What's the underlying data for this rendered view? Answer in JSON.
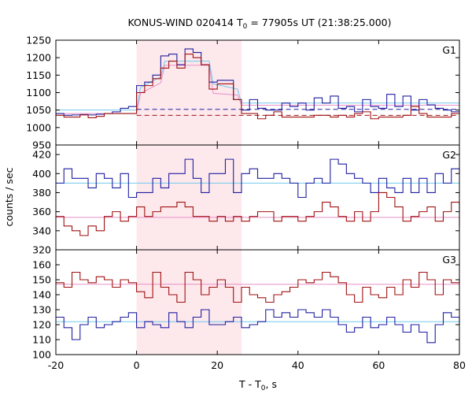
{
  "chart_data": {
    "type": "line",
    "title": "KONUS-WIND 020414 T",
    "title_sub": "0",
    "title_rest": " = 77905s UT (21:38:25.000)",
    "xlabel": "T - T",
    "xlabel_sub": "0",
    "xlabel_rest": ", s",
    "ylabel": "counts / sec",
    "xlim": [
      -20,
      80
    ],
    "xticks": [
      "-20",
      "0",
      "20",
      "40",
      "60",
      "80"
    ],
    "shaded_interval": [
      0,
      26
    ],
    "colors": {
      "blue": "#1f1fa0",
      "red": "#a01010",
      "lightblue": "#70c8ee",
      "pink": "#e890c8",
      "shade": "#fde8ec"
    },
    "panels": [
      {
        "label": "G1",
        "ylim": [
          950,
          1250
        ],
        "yticks": [
          "950",
          "1000",
          "1050",
          "1100",
          "1150",
          "1200",
          "1250"
        ],
        "fits": [
          {
            "color": "lightblue",
            "dash": false,
            "points": [
              [
                -20,
                1050
              ],
              [
                0,
                1050
              ],
              [
                1,
                1115
              ],
              [
                6,
                1145
              ],
              [
                7,
                1190
              ],
              [
                18,
                1190
              ],
              [
                19,
                1125
              ],
              [
                25,
                1110
              ],
              [
                26,
                1070
              ],
              [
                80,
                1070
              ]
            ]
          },
          {
            "color": "pink",
            "dash": false,
            "points": [
              [
                -20,
                1040
              ],
              [
                0,
                1040
              ],
              [
                1,
                1098
              ],
              [
                6,
                1128
              ],
              [
                7,
                1178
              ],
              [
                18,
                1178
              ],
              [
                19,
                1098
              ],
              [
                25,
                1093
              ],
              [
                26,
                1064
              ],
              [
                80,
                1064
              ]
            ]
          },
          {
            "color": "blue",
            "dash": true,
            "points": [
              [
                0,
                1052
              ],
              [
                80,
                1052
              ]
            ]
          },
          {
            "color": "red",
            "dash": true,
            "points": [
              [
                0,
                1035
              ],
              [
                80,
                1035
              ]
            ]
          }
        ],
        "series": [
          {
            "color": "blue",
            "edges": [
              -20,
              -18,
              -16,
              -14,
              -12,
              -10,
              -8,
              -6,
              -4,
              -2,
              0,
              2,
              4,
              6,
              8,
              10,
              12,
              14,
              16,
              18,
              20,
              22,
              24,
              26,
              28,
              30,
              32,
              34,
              36,
              38,
              40,
              42,
              44,
              46,
              48,
              50,
              52,
              54,
              56,
              58,
              60,
              62,
              64,
              66,
              68,
              70,
              72,
              74,
              76,
              78,
              80
            ],
            "values": [
              1040,
              1035,
              1036,
              1037,
              1036,
              1038,
              1040,
              1045,
              1055,
              1060,
              1120,
              1130,
              1150,
              1205,
              1210,
              1180,
              1225,
              1215,
              1180,
              1130,
              1135,
              1135,
              1080,
              1050,
              1080,
              1055,
              1050,
              1050,
              1070,
              1060,
              1070,
              1050,
              1085,
              1070,
              1090,
              1055,
              1060,
              1045,
              1080,
              1060,
              1055,
              1095,
              1060,
              1090,
              1050,
              1080,
              1065,
              1055,
              1050,
              1045
            ]
          },
          {
            "color": "red",
            "edges": [
              -20,
              -18,
              -16,
              -14,
              -12,
              -10,
              -8,
              -6,
              -4,
              -2,
              0,
              2,
              4,
              6,
              8,
              10,
              12,
              14,
              16,
              18,
              20,
              22,
              24,
              26,
              28,
              30,
              32,
              34,
              36,
              38,
              40,
              42,
              44,
              46,
              48,
              50,
              52,
              54,
              56,
              58,
              60,
              62,
              64,
              66,
              68,
              70,
              72,
              74,
              76,
              78,
              80
            ],
            "values": [
              1035,
              1030,
              1030,
              1036,
              1028,
              1032,
              1040,
              1040,
              1040,
              1040,
              1100,
              1120,
              1140,
              1170,
              1190,
              1170,
              1210,
              1200,
              1180,
              1110,
              1125,
              1125,
              1080,
              1040,
              1040,
              1025,
              1035,
              1045,
              1030,
              1030,
              1030,
              1030,
              1035,
              1035,
              1030,
              1035,
              1030,
              1040,
              1045,
              1025,
              1030,
              1030,
              1030,
              1035,
              1060,
              1040,
              1030,
              1030,
              1030,
              1040
            ]
          }
        ]
      },
      {
        "label": "G2",
        "ylim": [
          320,
          430
        ],
        "yticks": [
          "320",
          "340",
          "360",
          "380",
          "400",
          "420"
        ],
        "fits": [
          {
            "color": "lightblue",
            "dash": false,
            "points": [
              [
                -20,
                390
              ],
              [
                80,
                390
              ]
            ]
          },
          {
            "color": "pink",
            "dash": false,
            "points": [
              [
                -20,
                354
              ],
              [
                80,
                354
              ]
            ]
          }
        ],
        "series": [
          {
            "color": "blue",
            "edges": [
              -20,
              -18,
              -16,
              -14,
              -12,
              -10,
              -8,
              -6,
              -4,
              -2,
              0,
              2,
              4,
              6,
              8,
              10,
              12,
              14,
              16,
              18,
              20,
              22,
              24,
              26,
              28,
              30,
              32,
              34,
              36,
              38,
              40,
              42,
              44,
              46,
              48,
              50,
              52,
              54,
              56,
              58,
              60,
              62,
              64,
              66,
              68,
              70,
              72,
              74,
              76,
              78,
              80
            ],
            "values": [
              390,
              405,
              395,
              395,
              385,
              400,
              395,
              385,
              400,
              375,
              380,
              380,
              395,
              385,
              400,
              400,
              415,
              395,
              380,
              400,
              400,
              415,
              380,
              400,
              405,
              395,
              395,
              400,
              395,
              390,
              375,
              390,
              395,
              390,
              415,
              410,
              400,
              395,
              390,
              380,
              395,
              385,
              380,
              395,
              380,
              395,
              380,
              400,
              390,
              405,
              400
            ]
          },
          {
            "color": "red",
            "edges": [
              -20,
              -18,
              -16,
              -14,
              -12,
              -10,
              -8,
              -6,
              -4,
              -2,
              0,
              2,
              4,
              6,
              8,
              10,
              12,
              14,
              16,
              18,
              20,
              22,
              24,
              26,
              28,
              30,
              32,
              34,
              36,
              38,
              40,
              42,
              44,
              46,
              48,
              50,
              52,
              54,
              56,
              58,
              60,
              62,
              64,
              66,
              68,
              70,
              72,
              74,
              76,
              78,
              80
            ],
            "values": [
              355,
              345,
              340,
              335,
              345,
              340,
              355,
              360,
              350,
              355,
              365,
              355,
              360,
              365,
              365,
              370,
              365,
              355,
              355,
              350,
              355,
              350,
              355,
              350,
              355,
              360,
              360,
              350,
              355,
              355,
              350,
              355,
              360,
              370,
              365,
              355,
              350,
              360,
              350,
              360,
              380,
              375,
              365,
              350,
              355,
              360,
              365,
              350,
              360,
              370,
              345
            ]
          }
        ]
      },
      {
        "label": "G3",
        "ylim": [
          100,
          170
        ],
        "yticks": [
          "100",
          "110",
          "120",
          "130",
          "140",
          "150",
          "160"
        ],
        "fits": [
          {
            "color": "lightblue",
            "dash": false,
            "points": [
              [
                -20,
                122
              ],
              [
                80,
                122
              ]
            ]
          },
          {
            "color": "pink",
            "dash": false,
            "points": [
              [
                -20,
                147
              ],
              [
                80,
                147
              ]
            ]
          }
        ],
        "series": [
          {
            "color": "blue",
            "edges": [
              -20,
              -18,
              -16,
              -14,
              -12,
              -10,
              -8,
              -6,
              -4,
              -2,
              0,
              2,
              4,
              6,
              8,
              10,
              12,
              14,
              16,
              18,
              20,
              22,
              24,
              26,
              28,
              30,
              32,
              34,
              36,
              38,
              40,
              42,
              44,
              46,
              48,
              50,
              52,
              54,
              56,
              58,
              60,
              62,
              64,
              66,
              68,
              70,
              72,
              74,
              76,
              78,
              80
            ],
            "values": [
              125,
              118,
              110,
              120,
              125,
              118,
              120,
              122,
              125,
              128,
              118,
              122,
              120,
              118,
              128,
              122,
              118,
              125,
              130,
              120,
              120,
              122,
              125,
              118,
              120,
              122,
              130,
              125,
              128,
              125,
              130,
              128,
              125,
              130,
              125,
              120,
              115,
              118,
              125,
              118,
              120,
              125,
              120,
              115,
              120,
              115,
              108,
              120,
              128,
              125,
              120
            ]
          },
          {
            "color": "red",
            "edges": [
              -20,
              -18,
              -16,
              -14,
              -12,
              -10,
              -8,
              -6,
              -4,
              -2,
              0,
              2,
              4,
              6,
              8,
              10,
              12,
              14,
              16,
              18,
              20,
              22,
              24,
              26,
              28,
              30,
              32,
              34,
              36,
              38,
              40,
              42,
              44,
              46,
              48,
              50,
              52,
              54,
              56,
              58,
              60,
              62,
              64,
              66,
              68,
              70,
              72,
              74,
              76,
              78,
              80
            ],
            "values": [
              148,
              145,
              155,
              150,
              148,
              152,
              150,
              145,
              150,
              148,
              142,
              138,
              155,
              145,
              140,
              135,
              155,
              150,
              140,
              145,
              150,
              145,
              135,
              145,
              140,
              138,
              135,
              140,
              142,
              145,
              150,
              148,
              150,
              155,
              152,
              148,
              140,
              135,
              145,
              140,
              138,
              145,
              140,
              150,
              145,
              155,
              150,
              140,
              150,
              148,
              150
            ]
          }
        ]
      }
    ]
  }
}
